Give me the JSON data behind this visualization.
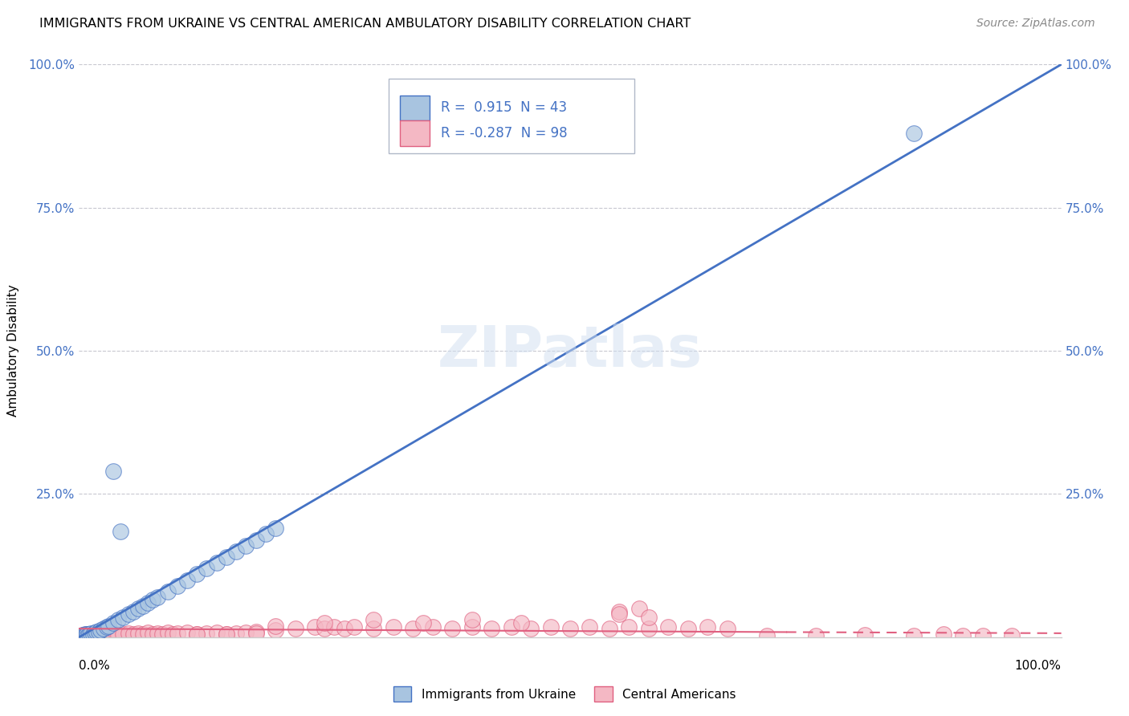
{
  "title": "IMMIGRANTS FROM UKRAINE VS CENTRAL AMERICAN AMBULATORY DISABILITY CORRELATION CHART",
  "source": "Source: ZipAtlas.com",
  "ylabel": "Ambulatory Disability",
  "legend_ukraine": "Immigrants from Ukraine",
  "legend_central": "Central Americans",
  "R_ukraine": 0.915,
  "N_ukraine": 43,
  "R_central": -0.287,
  "N_central": 98,
  "ukraine_color": "#a8c4e0",
  "central_color": "#f4b8c4",
  "ukraine_line_color": "#4472c4",
  "central_line_color": "#e06080",
  "ukraine_scatter_x": [
    0.2,
    0.3,
    0.4,
    0.5,
    0.6,
    0.7,
    0.8,
    0.9,
    1.0,
    1.2,
    1.4,
    1.6,
    1.8,
    2.0,
    2.2,
    2.5,
    2.8,
    3.0,
    3.5,
    4.0,
    4.5,
    5.0,
    5.5,
    6.0,
    6.5,
    7.0,
    7.5,
    8.0,
    9.0,
    10.0,
    11.0,
    12.0,
    13.0,
    14.0,
    15.0,
    16.0,
    17.0,
    18.0,
    19.0,
    3.5,
    4.2,
    20.0,
    85.0
  ],
  "ukraine_scatter_y": [
    0.3,
    0.2,
    0.4,
    0.3,
    0.5,
    0.4,
    0.6,
    0.3,
    0.5,
    0.7,
    0.6,
    0.8,
    1.0,
    0.9,
    1.2,
    1.5,
    1.8,
    2.0,
    2.5,
    3.0,
    3.5,
    4.0,
    4.5,
    5.0,
    5.5,
    6.0,
    6.5,
    7.0,
    8.0,
    9.0,
    10.0,
    11.0,
    12.0,
    13.0,
    14.0,
    15.0,
    16.0,
    17.0,
    18.0,
    29.0,
    18.5,
    19.0,
    88.0
  ],
  "central_scatter_x": [
    0.1,
    0.2,
    0.3,
    0.4,
    0.5,
    0.6,
    0.7,
    0.8,
    0.9,
    1.0,
    1.1,
    1.2,
    1.3,
    1.4,
    1.5,
    1.6,
    1.7,
    1.8,
    1.9,
    2.0,
    2.2,
    2.4,
    2.6,
    2.8,
    3.0,
    3.2,
    3.5,
    3.8,
    4.0,
    4.5,
    5.0,
    5.5,
    6.0,
    6.5,
    7.0,
    7.5,
    8.0,
    8.5,
    9.0,
    9.5,
    10.0,
    11.0,
    12.0,
    13.0,
    14.0,
    15.0,
    16.0,
    17.0,
    18.0,
    20.0,
    22.0,
    24.0,
    25.0,
    26.0,
    27.0,
    28.0,
    30.0,
    32.0,
    34.0,
    36.0,
    38.0,
    40.0,
    42.0,
    44.0,
    46.0,
    48.0,
    50.0,
    52.0,
    54.0,
    56.0,
    58.0,
    60.0,
    62.0,
    64.0,
    66.0,
    55.0,
    57.0,
    20.0,
    25.0,
    30.0,
    35.0,
    40.0,
    45.0,
    12.0,
    15.0,
    18.0,
    55.0,
    58.0,
    70.0,
    75.0,
    80.0,
    85.0,
    88.0,
    90.0,
    92.0,
    95.0,
    0.5,
    0.8
  ],
  "central_scatter_y": [
    0.2,
    0.3,
    0.1,
    0.4,
    0.2,
    0.3,
    0.5,
    0.2,
    0.3,
    0.4,
    0.3,
    0.5,
    0.2,
    0.4,
    0.3,
    0.5,
    0.2,
    0.4,
    0.3,
    0.4,
    0.5,
    0.3,
    0.4,
    0.5,
    0.3,
    0.4,
    0.6,
    0.5,
    0.4,
    0.6,
    0.7,
    0.6,
    0.7,
    0.5,
    0.8,
    0.6,
    0.7,
    0.5,
    0.8,
    0.6,
    0.7,
    0.8,
    0.6,
    0.7,
    0.8,
    0.6,
    0.7,
    0.8,
    1.0,
    1.2,
    1.5,
    1.8,
    1.5,
    1.8,
    1.5,
    1.8,
    1.5,
    1.8,
    1.5,
    1.8,
    1.5,
    1.8,
    1.5,
    1.8,
    1.5,
    1.8,
    1.5,
    1.8,
    1.5,
    1.8,
    1.5,
    1.8,
    1.5,
    1.8,
    1.5,
    4.5,
    5.0,
    2.0,
    2.5,
    3.0,
    2.5,
    3.0,
    2.5,
    0.5,
    0.6,
    0.7,
    4.0,
    3.5,
    0.3,
    0.2,
    0.4,
    0.3,
    0.5,
    0.2,
    0.3,
    0.2,
    0.2,
    0.3
  ],
  "watermark": "ZIPatlas",
  "background_color": "#ffffff",
  "grid_color": "#c8c8d0",
  "xlim": [
    0,
    100
  ],
  "ylim": [
    0,
    100
  ],
  "yticks": [
    0,
    25,
    50,
    75,
    100
  ],
  "ytick_labels": [
    "",
    "25.0%",
    "50.0%",
    "75.0%",
    "100.0%"
  ]
}
